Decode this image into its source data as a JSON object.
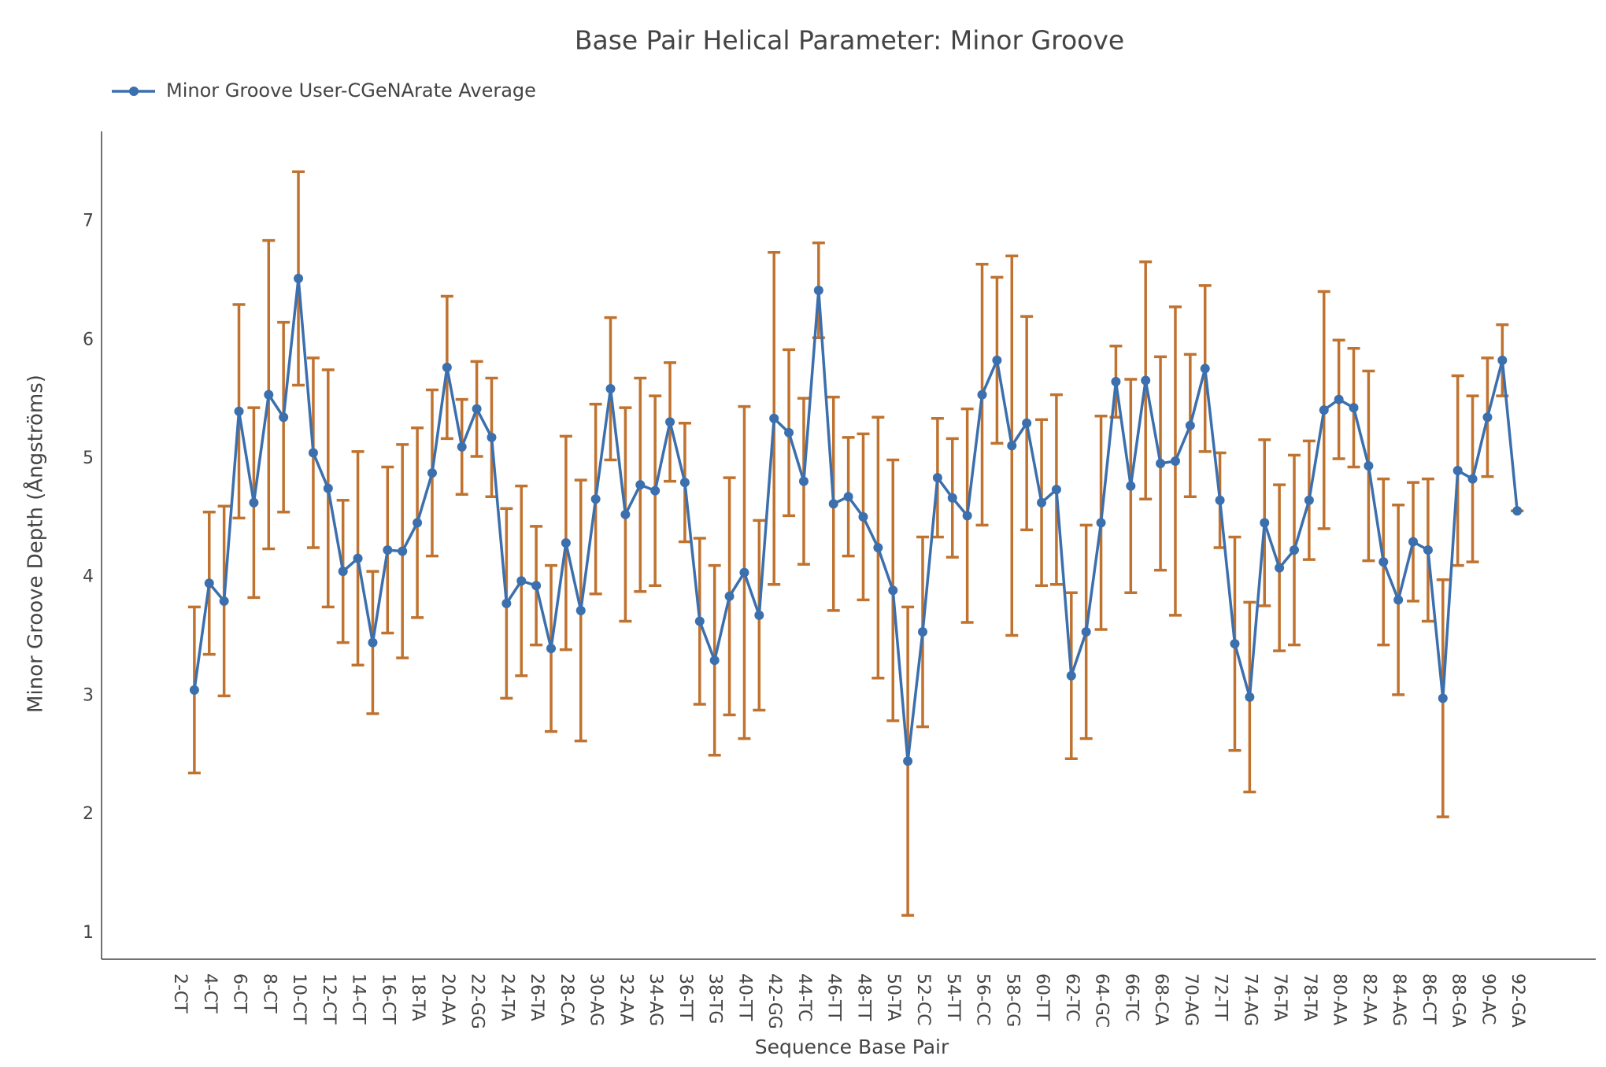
{
  "chart_data": {
    "type": "line",
    "title": "Base Pair Helical Parameter: Minor Groove",
    "x_label": "Sequence Base Pair",
    "y_label": "Minor Groove Depth (Ångströms)",
    "categories": [
      "2-CT",
      null,
      "4-CT",
      null,
      "6-CT",
      null,
      "8-CT",
      null,
      "10-CT",
      null,
      "12-CT",
      null,
      "14-CT",
      null,
      "16-CT",
      null,
      "18-TA",
      null,
      "20-AA",
      null,
      "22-GG",
      null,
      "24-TA",
      null,
      "26-TA",
      null,
      "28-CA",
      null,
      "30-AG",
      null,
      "32-AA",
      null,
      "34-AG",
      null,
      "36-TT",
      null,
      "38-TG",
      null,
      "40-TT",
      null,
      "42-GG",
      null,
      "44-TC",
      null,
      "46-TT",
      null,
      "48-TT",
      null,
      "50-TA",
      null,
      "52-CC",
      null,
      "54-TT",
      null,
      "56-CC",
      null,
      "58-CG",
      null,
      "60-TT",
      null,
      "62-TC",
      null,
      "64-GC",
      null,
      "66-TC",
      null,
      "68-CA",
      null,
      "70-AG",
      null,
      "72-TT",
      null,
      "74-AG",
      null,
      "76-TA",
      null,
      "78-TA",
      null,
      "80-AA",
      null,
      "82-AA",
      null,
      "84-AG",
      null,
      "86-CT",
      null,
      "88-GA",
      null,
      "90-AC",
      null,
      "92-GA"
    ],
    "series": [
      {
        "name": "Minor Groove User-CGeNArate Average",
        "color": "#3b6fad",
        "error_color": "#c0722f",
        "values": [
          null,
          3.05,
          3.95,
          3.8,
          5.4,
          4.63,
          5.54,
          5.35,
          6.52,
          5.05,
          4.75,
          4.05,
          4.16,
          3.45,
          4.23,
          4.22,
          4.46,
          4.88,
          5.77,
          5.1,
          5.42,
          5.18,
          3.78,
          3.97,
          3.93,
          3.4,
          4.29,
          3.72,
          4.66,
          5.59,
          4.53,
          4.78,
          4.73,
          5.31,
          4.8,
          3.63,
          3.3,
          3.84,
          4.04,
          3.68,
          5.34,
          5.22,
          4.81,
          6.42,
          4.62,
          4.68,
          4.51,
          4.25,
          3.89,
          2.45,
          3.54,
          4.84,
          4.67,
          4.52,
          5.54,
          5.83,
          5.11,
          5.3,
          4.63,
          4.74,
          3.17,
          3.54,
          4.46,
          5.65,
          4.77,
          5.66,
          4.96,
          4.98,
          5.28,
          5.76,
          4.65,
          3.44,
          2.99,
          4.46,
          4.08,
          4.23,
          4.65,
          5.41,
          5.5,
          5.43,
          4.94,
          4.13,
          3.81,
          4.3,
          4.23,
          2.98,
          4.9,
          4.83,
          5.35,
          5.83,
          4.56
        ],
        "errors": [
          null,
          0.7,
          0.6,
          0.8,
          0.9,
          0.8,
          1.3,
          0.8,
          0.9,
          0.8,
          1.0,
          0.6,
          0.9,
          0.6,
          0.7,
          0.9,
          0.8,
          0.7,
          0.6,
          0.4,
          0.4,
          0.5,
          0.8,
          0.8,
          0.5,
          0.7,
          0.9,
          1.1,
          0.8,
          0.6,
          0.9,
          0.9,
          0.8,
          0.5,
          0.5,
          0.7,
          0.8,
          1.0,
          1.4,
          0.8,
          1.4,
          0.7,
          0.7,
          0.4,
          0.9,
          0.5,
          0.7,
          1.1,
          1.1,
          1.3,
          0.8,
          0.5,
          0.5,
          0.9,
          1.1,
          0.7,
          1.6,
          0.9,
          0.7,
          0.8,
          0.7,
          0.9,
          0.9,
          0.3,
          0.9,
          1.0,
          0.9,
          1.3,
          0.6,
          0.7,
          0.4,
          0.9,
          0.8,
          0.7,
          0.7,
          0.8,
          0.5,
          1.0,
          0.5,
          0.5,
          0.8,
          0.7,
          0.8,
          0.5,
          0.6,
          1.0,
          0.8,
          0.7,
          0.5,
          0.3,
          0
        ]
      }
    ],
    "ylim": [
      0.78,
      7.76
    ],
    "yticks": [
      1,
      2,
      3,
      4,
      5,
      6,
      7
    ],
    "grid": false,
    "legend": "top-left"
  }
}
